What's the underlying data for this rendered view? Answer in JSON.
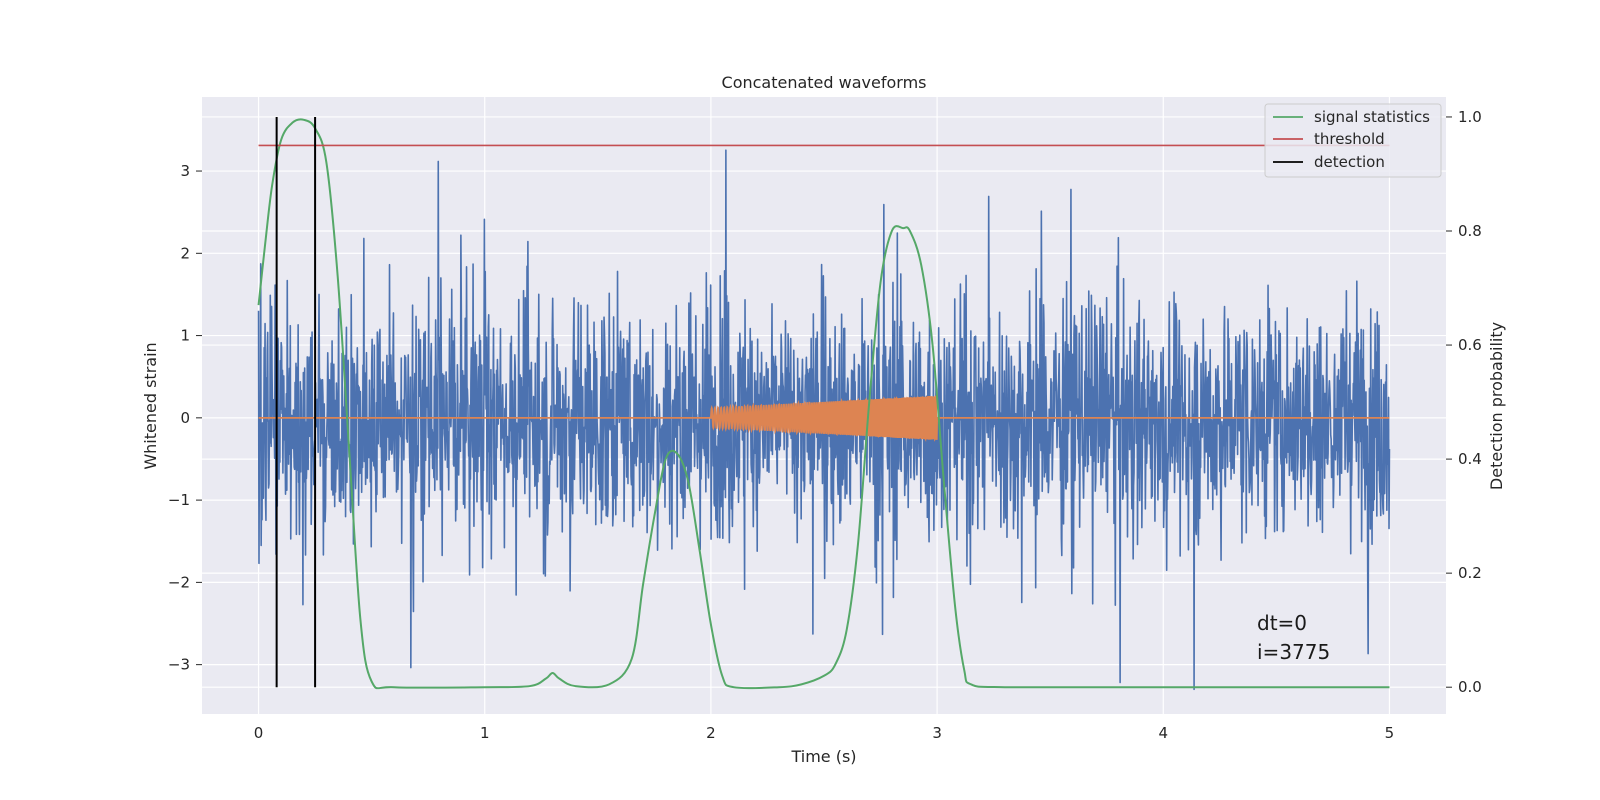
{
  "chart_data": {
    "type": "line",
    "title": "Concatenated waveforms",
    "xlabel": "Time (s)",
    "ylabel_left": "Whitened strain",
    "ylabel_right": "Detection probability",
    "xlim": [
      -0.25,
      5.25
    ],
    "ylim_left": [
      -3.6,
      3.9
    ],
    "ylim_right": [
      -0.047,
      1.035
    ],
    "xticks": [
      0,
      1,
      2,
      3,
      4,
      5
    ],
    "yticks_left": [
      -3,
      -2,
      -1,
      0,
      1,
      2,
      3
    ],
    "yticks_right": [
      0.0,
      0.2,
      0.4,
      0.6,
      0.8,
      1.0
    ],
    "ytick_labels_left": [
      "−3",
      "−2",
      "−1",
      "0",
      "1",
      "2",
      "3"
    ],
    "ytick_labels_right": [
      "0.0",
      "0.2",
      "0.4",
      "0.6",
      "0.8",
      "1.0"
    ],
    "grid": true,
    "legend_position": "top-right",
    "series": [
      {
        "name": "whitened strain",
        "axis": "left",
        "color": "#4c72b0",
        "kind": "noise",
        "x_range": [
          0,
          5
        ],
        "typical_amplitude": 1.0,
        "peak_max": 3.6,
        "peak_min": -3.3
      },
      {
        "name": "injected signal",
        "axis": "left",
        "color": "#dd8452",
        "kind": "chirp",
        "x_range": [
          0,
          5
        ],
        "chirp_start": 2.0,
        "chirp_end": 3.0,
        "amplitude_start": 0.12,
        "amplitude_end": 0.27
      },
      {
        "name": "signal statistics",
        "axis": "right",
        "color": "#55a868",
        "x": [
          0,
          0.03,
          0.06,
          0.1,
          0.15,
          0.2,
          0.25,
          0.3,
          0.35,
          0.4,
          0.45,
          0.5,
          0.6,
          1.0,
          1.2,
          1.27,
          1.3,
          1.33,
          1.4,
          1.55,
          1.65,
          1.7,
          1.75,
          1.8,
          1.85,
          1.9,
          1.95,
          2.0,
          2.05,
          2.1,
          2.3,
          2.4,
          2.5,
          2.55,
          2.6,
          2.65,
          2.7,
          2.75,
          2.8,
          2.85,
          2.88,
          2.93,
          2.98,
          3.03,
          3.08,
          3.12,
          3.15,
          3.3,
          4.0,
          5.0
        ],
        "y": [
          0.67,
          0.78,
          0.88,
          0.96,
          0.99,
          0.995,
          0.98,
          0.92,
          0.72,
          0.42,
          0.12,
          0.01,
          0.0,
          0.0,
          0.002,
          0.015,
          0.025,
          0.015,
          0.002,
          0.005,
          0.05,
          0.18,
          0.3,
          0.4,
          0.41,
          0.36,
          0.24,
          0.11,
          0.02,
          0.0,
          0.0,
          0.005,
          0.02,
          0.04,
          0.1,
          0.25,
          0.5,
          0.71,
          0.8,
          0.805,
          0.8,
          0.74,
          0.6,
          0.36,
          0.14,
          0.03,
          0.005,
          0.0,
          0.0,
          0.0
        ]
      },
      {
        "name": "threshold",
        "axis": "right",
        "color": "#c44e52",
        "x": [
          0,
          5
        ],
        "y": [
          0.95,
          0.95
        ]
      },
      {
        "name": "detection",
        "axis": "right",
        "color": "#000000",
        "kind": "vlines",
        "x": [
          0.08,
          0.25
        ],
        "y_range": [
          0.0,
          1.0
        ]
      }
    ],
    "legend": [
      {
        "label": "signal statistics",
        "color": "#55a868"
      },
      {
        "label": "threshold",
        "color": "#c44e52"
      },
      {
        "label": "detection",
        "color": "#000000"
      }
    ],
    "annotations": [
      "dt=0",
      "i=3775"
    ]
  }
}
